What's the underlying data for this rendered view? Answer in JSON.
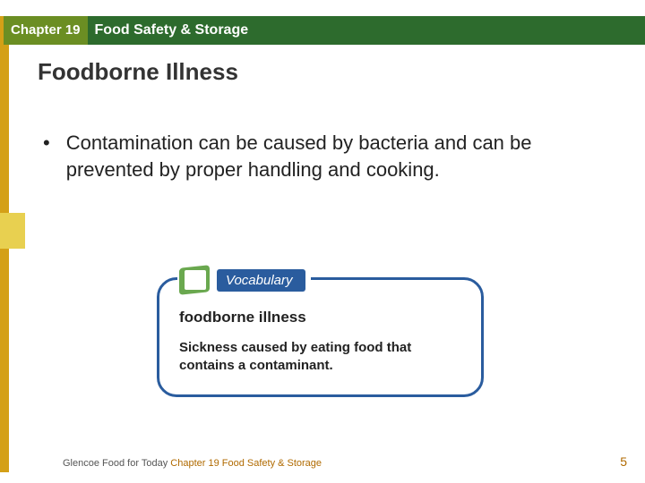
{
  "header": {
    "chapter_label": "Chapter 19",
    "chapter_title": "Food Safety & Storage"
  },
  "slide": {
    "title": "Foodborne Illness",
    "bullet": "Contamination can be caused by bacteria and can be prevented by proper handling and cooking."
  },
  "vocab": {
    "tab_label": "Vocabulary",
    "term": "foodborne illness",
    "definition": "Sickness caused by eating food that contains a contaminant."
  },
  "footer": {
    "prefix": "Glencoe Food for Today ",
    "chapter": "Chapter 19 ",
    "suffix": "Food Safety & Storage"
  },
  "page_number": "5",
  "colors": {
    "header_bg": "#2d6b2d",
    "chapter_bg": "#6b8e23",
    "gold": "#d4a017",
    "gold_tab": "#e8d050",
    "vocab_border": "#2a5c9e",
    "vocab_icon_green": "#6aa84f",
    "footer_accent": "#b06a00"
  }
}
